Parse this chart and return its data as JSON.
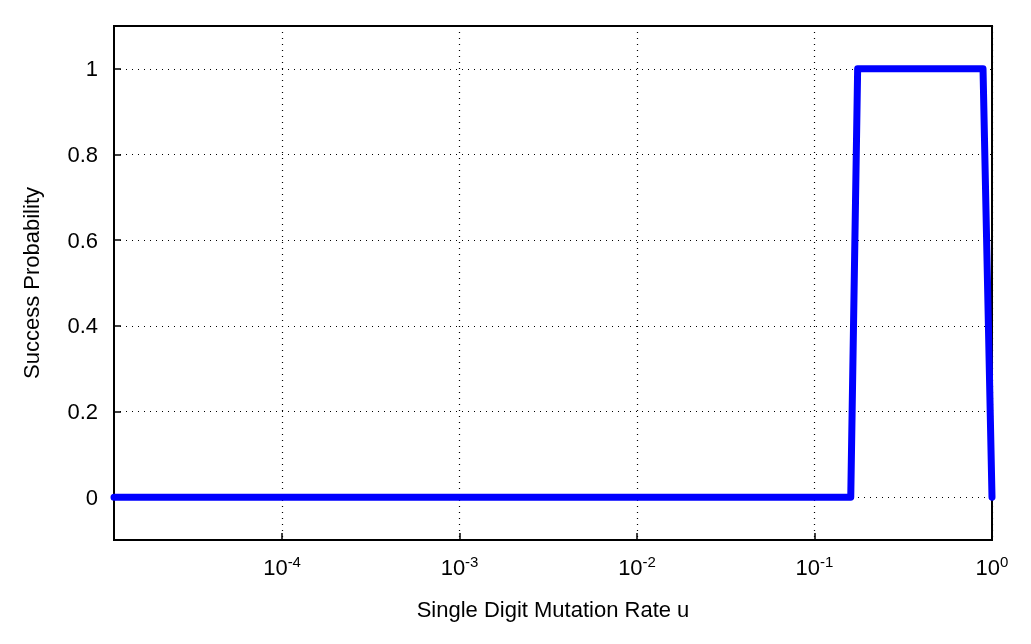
{
  "chart_data": {
    "type": "line",
    "xlabel": "Single Digit Mutation Rate u",
    "ylabel": "Success Probability",
    "log": "x",
    "x": [
      1.13e-05,
      0.16,
      0.175,
      0.2,
      0.3,
      0.5,
      0.89,
      1
    ],
    "series": [
      {
        "color": "#0000ff",
        "values": [
          0,
          0,
          1,
          1,
          1,
          1,
          1,
          0
        ]
      }
    ],
    "xlim": [
      1.13e-05,
      1
    ],
    "xticks": [
      {
        "value": 0.0001,
        "label": "10$^{-4}$"
      },
      {
        "value": 0.001,
        "label": "10$^{-3}$"
      },
      {
        "value": 0.01,
        "label": "10$^{-2}$"
      },
      {
        "value": 0.1,
        "label": "10$^{-1}$"
      },
      {
        "value": 1,
        "label": "10$^{0}$"
      }
    ],
    "ylim": [
      -0.1,
      1.1
    ],
    "yticks": [
      0,
      0.2,
      0.4,
      0.6,
      0.8,
      1
    ],
    "grid": true,
    "marker": "none",
    "line_style": "solid"
  }
}
